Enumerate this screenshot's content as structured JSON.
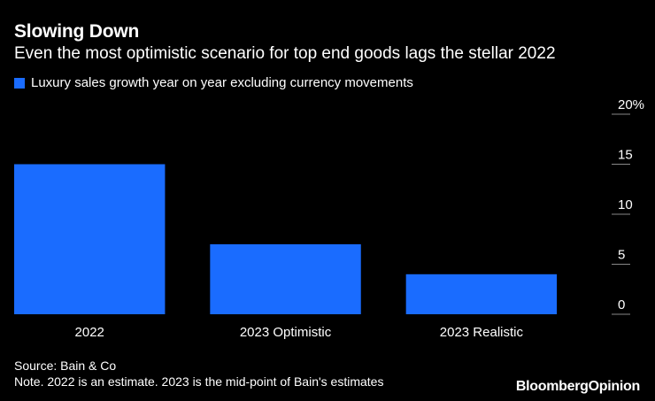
{
  "colors": {
    "bar": "#1a6cff",
    "background": "#000000",
    "text": "#ffffff",
    "gridline": "#888888"
  },
  "brand": {
    "name": "Bloomberg",
    "suffix": "Opinion"
  },
  "source": "Source: Bain & Co",
  "note": "Note. 2022 is an estimate. 2023 is the mid-point of Bain's estimates",
  "chart_data": {
    "type": "bar",
    "title": "Slowing Down",
    "subtitle": "Even the most optimistic scenario for top end goods lags the stellar 2022",
    "legend": [
      "Luxury sales growth year on year excluding currency movements"
    ],
    "legend_position": "top-left",
    "categories": [
      "2022",
      "2023 Optimistic",
      "2023 Realistic"
    ],
    "series": [
      {
        "name": "Luxury sales growth year on year excluding currency movements",
        "values": [
          15,
          7,
          4
        ]
      }
    ],
    "xlabel": "",
    "ylabel": "",
    "ylim": [
      0,
      20
    ],
    "y_axis_side": "right",
    "y_ticks": [
      0,
      5,
      10,
      15,
      20
    ],
    "y_tick_labels": [
      "0",
      "5",
      "10",
      "15",
      "20%"
    ],
    "grid": false
  }
}
